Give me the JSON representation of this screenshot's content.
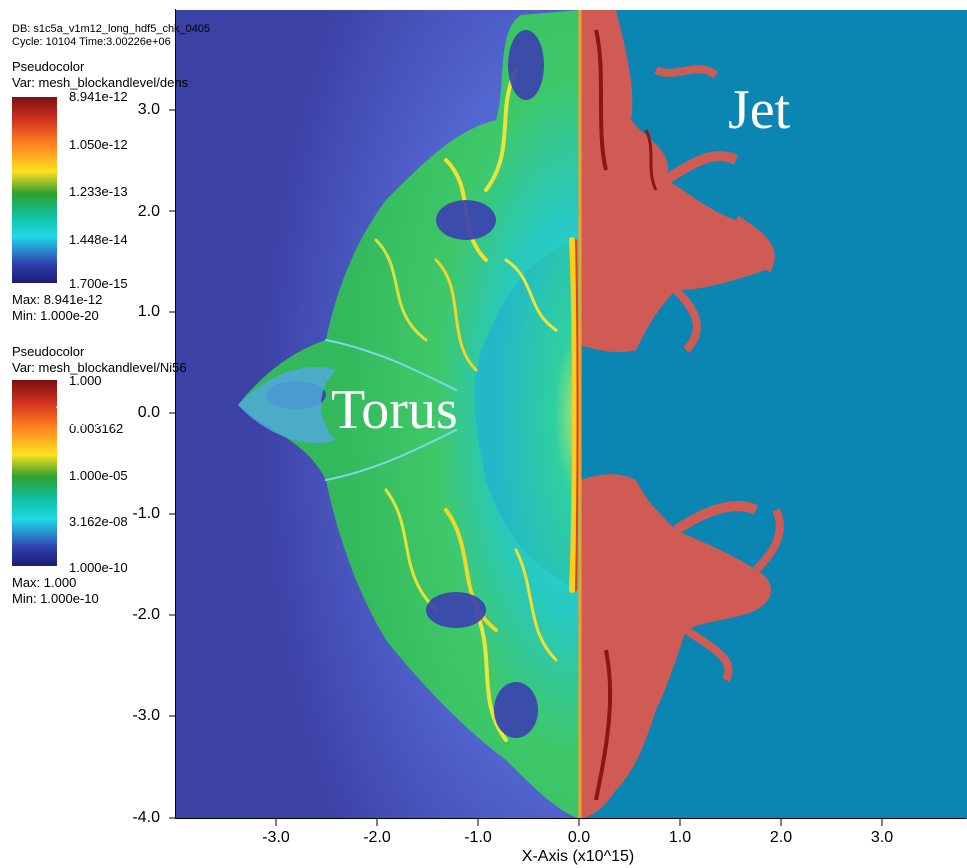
{
  "header": {
    "db": "DB: s1c5a_v1m12_long_hdf5_chk_0405",
    "cycle": "Cycle: 10104    Time:3.00226e+06"
  },
  "legend1": {
    "title": "Pseudocolor",
    "var": "Var: mesh_blockandlevel/dens",
    "ticks": [
      "8.941e-12",
      "1.050e-12",
      "1.233e-13",
      "1.448e-14",
      "1.700e-15"
    ],
    "max": "Max: 8.941e-12",
    "min": "Min: 1.000e-20"
  },
  "legend2": {
    "title": "Pseudocolor",
    "var": "Var: mesh_blockandlevel/Ni56",
    "ticks": [
      "1.000",
      "0.003162",
      "1.000e-05",
      "3.162e-08",
      "1.000e-10"
    ],
    "max": "Max: 1.000",
    "min": "Min: 1.000e-10",
    "overlap_text": "Axis",
    "overlap_text2": "(x10^15)"
  },
  "yaxis": {
    "ticks": [
      "3.0",
      "2.0",
      "1.0",
      "0.0",
      "-1.0",
      "-2.0",
      "-3.0",
      "-4.0"
    ]
  },
  "xaxis": {
    "ticks": [
      "-3.0",
      "-2.0",
      "-1.0",
      "0.0",
      "1.0",
      "2.0",
      "3.0"
    ],
    "label": "X-Axis (x10^15)"
  },
  "labels": {
    "torus": "Torus",
    "jet": "Jet"
  },
  "colors": {
    "left_bg_outer": "#3f45a8",
    "left_bg_inner": "#5b6fd6",
    "right_bg": "#0b86b3",
    "torus_fill": "#34c85b",
    "torus_inner": "#2ed0c6",
    "jet_red": "#d05b55"
  }
}
